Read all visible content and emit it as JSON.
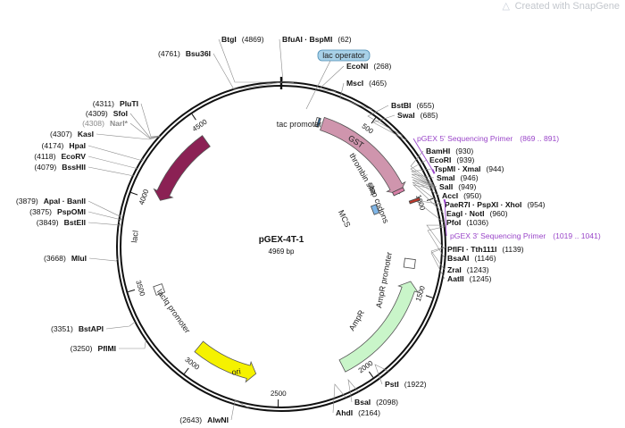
{
  "watermark": {
    "text": "Created with SnapGene",
    "icon": "snapgene-logo-icon"
  },
  "plasmid": {
    "name": "pGEX-4T-1",
    "size_label": "4969 bp",
    "total_bp": 4969
  },
  "ticks": [
    {
      "bp": 500,
      "label": "500"
    },
    {
      "bp": 1000,
      "label": "1000"
    },
    {
      "bp": 1500,
      "label": "1500"
    },
    {
      "bp": 2000,
      "label": "2000"
    },
    {
      "bp": 2500,
      "label": "2500"
    },
    {
      "bp": 3000,
      "label": "3000"
    },
    {
      "bp": 3500,
      "label": "3500"
    },
    {
      "bp": 4000,
      "label": "4000"
    },
    {
      "bp": 4500,
      "label": "4500"
    }
  ],
  "features": [
    {
      "name": "lacI",
      "label": "lacI",
      "start": 4015,
      "end": 4480,
      "strand": -1,
      "color": "#8b2154"
    },
    {
      "name": "lacIq-promoter",
      "label": "lacIq promoter",
      "start": 3440,
      "end": 3478,
      "strand": -1,
      "color": "#ffffff"
    },
    {
      "name": "ori",
      "label": "ori",
      "start": 2640,
      "end": 3030,
      "strand": -1,
      "color": "#f5f200"
    },
    {
      "name": "AmpR",
      "label": "AmpR",
      "start": 1450,
      "end": 2110,
      "strand": -1,
      "color": "#c9f5c9"
    },
    {
      "name": "AmpR-promoter",
      "label": "AmpR promoter",
      "start": 1310,
      "end": 1380,
      "strand": -1,
      "color": "#ffffff"
    },
    {
      "name": "GST",
      "label": "GST",
      "start": 255,
      "end": 910,
      "strand": 1,
      "color": "#cf95ad"
    },
    {
      "name": "tac-promoter",
      "label": "tac promoter",
      "start": 205,
      "end": 240,
      "strand": 1,
      "color": "#ffffff"
    },
    {
      "name": "thrombin-site",
      "label": "thrombin site",
      "start": 885,
      "end": 905,
      "strand": 1,
      "color": "#d77fa6"
    },
    {
      "name": "stop-codons",
      "label": "stop codons",
      "start": 975,
      "end": 985,
      "strand": 1,
      "color": "#c0392b"
    },
    {
      "name": "MCS",
      "label": "MCS",
      "start": 925,
      "end": 965,
      "strand": 1,
      "color": "#7fb5e6"
    }
  ],
  "lac_operator": {
    "label": "lac operator"
  },
  "sites": [
    {
      "pos": "(4869)",
      "name": "BtgI"
    },
    {
      "pos": "(4761)",
      "name": "Bsu36I"
    },
    {
      "pos": "(62)",
      "name": "BfuAI · BspMI"
    },
    {
      "pos": "(268)",
      "name": "EcoNI"
    },
    {
      "pos": "(465)",
      "name": "MscI"
    },
    {
      "pos": "(655)",
      "name": "BstBI"
    },
    {
      "pos": "(685)",
      "name": "SwaI"
    },
    {
      "pos": "(930)",
      "name": "BamHI"
    },
    {
      "pos": "(939)",
      "name": "EcoRI"
    },
    {
      "pos": "(944)",
      "name": "TspMI · XmaI"
    },
    {
      "pos": "(946)",
      "name": "SmaI"
    },
    {
      "pos": "(949)",
      "name": "SalI"
    },
    {
      "pos": "(950)",
      "name": "AccI"
    },
    {
      "pos": "(954)",
      "name": "PaeR7I · PspXI · XhoI"
    },
    {
      "pos": "(960)",
      "name": "EagI · NotI"
    },
    {
      "pos": "(1036)",
      "name": "PfoI"
    },
    {
      "pos": "(1139)",
      "name": "PflFI · Tth111I"
    },
    {
      "pos": "(1146)",
      "name": "BsaAI"
    },
    {
      "pos": "(1243)",
      "name": "ZraI"
    },
    {
      "pos": "(1245)",
      "name": "AatII"
    },
    {
      "pos": "(1922)",
      "name": "PstI"
    },
    {
      "pos": "(2098)",
      "name": "BsaI"
    },
    {
      "pos": "(2164)",
      "name": "AhdI"
    },
    {
      "pos": "(2643)",
      "name": "AlwNI"
    },
    {
      "pos": "(3250)",
      "name": "PflMI"
    },
    {
      "pos": "(3351)",
      "name": "BstAPI"
    },
    {
      "pos": "(3668)",
      "name": "MluI"
    },
    {
      "pos": "(3849)",
      "name": "BstEII"
    },
    {
      "pos": "(3875)",
      "name": "PspOMI"
    },
    {
      "pos": "(3879)",
      "name": "ApaI · BanII"
    },
    {
      "pos": "(4079)",
      "name": "BssHII"
    },
    {
      "pos": "(4118)",
      "name": "EcoRV"
    },
    {
      "pos": "(4174)",
      "name": "HpaI"
    },
    {
      "pos": "(4307)",
      "name": "KasI"
    },
    {
      "pos": "(4308)",
      "name": "NarI*"
    },
    {
      "pos": "(4309)",
      "name": "SfoI"
    },
    {
      "pos": "(4311)",
      "name": "PluTI"
    }
  ],
  "primers": [
    {
      "name": "pGEX 5' Sequencing Primer",
      "range": "(869 .. 891)",
      "color": "#9a46c9"
    },
    {
      "name": "pGEX 3' Sequencing Primer",
      "range": "(1019 .. 1041)",
      "color": "#9a46c9"
    }
  ]
}
